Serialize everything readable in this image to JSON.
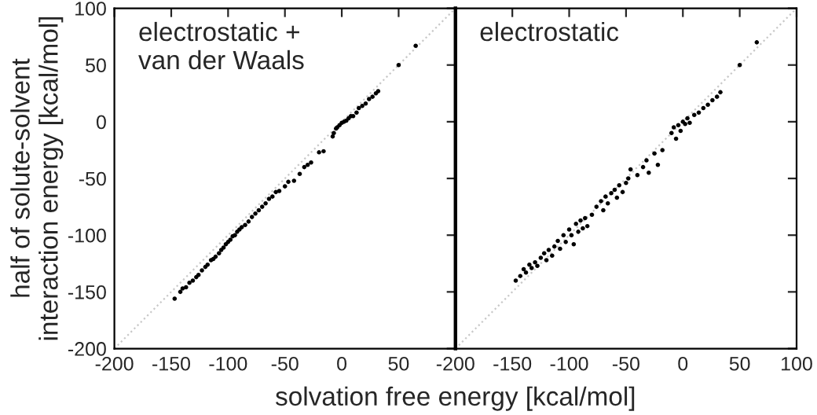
{
  "chart_data": [
    {
      "type": "scatter",
      "title": "electrostatic +\nvan der Waals",
      "ylabel": "half of solute-solvent\ninteraction energy [kcal/mol]",
      "xlabel": "solvation free energy [kcal/mol]",
      "xlim": [
        -200,
        100
      ],
      "ylim": [
        -200,
        100
      ],
      "xticks": [
        -200,
        -150,
        -100,
        -50,
        0,
        50,
        {
          "value": 100,
          "label": null
        }
      ],
      "yticks": [
        -200,
        -150,
        -100,
        -50,
        0,
        50,
        100
      ],
      "marker": "circle",
      "grid": false,
      "legend": false,
      "series": [
        {
          "color": "#000000",
          "x": [
            -147,
            -142,
            -140,
            -137,
            -134,
            -131,
            -128,
            -126,
            -123,
            -120,
            -118,
            -115,
            -113,
            -111,
            -108,
            -106,
            -104,
            -102,
            -100,
            -98,
            -96,
            -94,
            -92,
            -90,
            -88,
            -85,
            -82,
            -79,
            -76,
            -73,
            -70,
            -67,
            -64,
            -61,
            -58,
            -55,
            -50,
            -47,
            -42,
            -37,
            -33,
            -30,
            -27,
            -20,
            -16,
            -8,
            -7,
            -5,
            -4,
            -2,
            0,
            2,
            4,
            6,
            8,
            10,
            13,
            15,
            18,
            21,
            24,
            27,
            30,
            32,
            50,
            65
          ],
          "values": [
            -156,
            -150,
            -147,
            -146,
            -142,
            -140,
            -137,
            -135,
            -131,
            -128,
            -126,
            -122,
            -121,
            -119,
            -116,
            -113,
            -111,
            -108,
            -106,
            -104,
            -101,
            -100,
            -97,
            -95,
            -93,
            -91,
            -88,
            -84,
            -81,
            -78,
            -75,
            -72,
            -68,
            -66,
            -62,
            -61,
            -57,
            -53,
            -52,
            -46,
            -40,
            -38,
            -36,
            -27,
            -26,
            -13,
            -10,
            -6,
            -5,
            -3,
            -1,
            0,
            1,
            3,
            5,
            5,
            8,
            12,
            14,
            16,
            20,
            22,
            25,
            27,
            50,
            67
          ]
        },
        {
          "type": "line",
          "color": "#c8c8c8",
          "line_style": "dotted",
          "marker": "none",
          "x": [
            -200,
            100
          ],
          "values": [
            -200,
            100
          ]
        }
      ]
    },
    {
      "type": "scatter",
      "title": "electrostatic",
      "xlim": [
        -200,
        100
      ],
      "ylim": [
        -200,
        100
      ],
      "xticks": [
        -200,
        -150,
        -100,
        -50,
        0,
        50,
        100
      ],
      "yticks": [
        {
          "value": -200,
          "label": null
        },
        {
          "value": -150,
          "label": null
        },
        {
          "value": -100,
          "label": null
        },
        {
          "value": -50,
          "label": null
        },
        {
          "value": 0,
          "label": null
        },
        {
          "value": 50,
          "label": null
        },
        {
          "value": 100,
          "label": null
        }
      ],
      "tick_labels": "x",
      "marker": "circle",
      "grid": false,
      "legend": false,
      "series": [
        {
          "color": "#000000",
          "x": [
            -147,
            -143,
            -140,
            -138,
            -135,
            -133,
            -130,
            -128,
            -125,
            -122,
            -120,
            -118,
            -115,
            -113,
            -110,
            -108,
            -105,
            -103,
            -100,
            -98,
            -96,
            -94,
            -92,
            -90,
            -88,
            -86,
            -84,
            -80,
            -76,
            -72,
            -70,
            -68,
            -66,
            -63,
            -60,
            -58,
            -56,
            -53,
            -50,
            -48,
            -46,
            -40,
            -35,
            -32,
            -30,
            -25,
            -22,
            -18,
            -10,
            -8,
            -6,
            -4,
            -2,
            0,
            2,
            4,
            6,
            10,
            14,
            18,
            22,
            26,
            30,
            33,
            50,
            65
          ],
          "values": [
            -140,
            -136,
            -130,
            -133,
            -126,
            -129,
            -124,
            -127,
            -120,
            -116,
            -122,
            -113,
            -118,
            -110,
            -105,
            -112,
            -100,
            -106,
            -95,
            -100,
            -108,
            -90,
            -97,
            -87,
            -94,
            -85,
            -92,
            -82,
            -75,
            -70,
            -78,
            -66,
            -72,
            -63,
            -60,
            -67,
            -56,
            -62,
            -54,
            -50,
            -42,
            -47,
            -40,
            -34,
            -45,
            -28,
            -38,
            -25,
            -10,
            -5,
            -15,
            -3,
            -8,
            0,
            -2,
            3,
            -1,
            6,
            8,
            12,
            15,
            19,
            22,
            26,
            50,
            70
          ]
        },
        {
          "type": "line",
          "color": "#c8c8c8",
          "line_style": "dotted",
          "marker": "none",
          "x": [
            -200,
            100
          ],
          "values": [
            -200,
            100
          ]
        }
      ]
    }
  ]
}
